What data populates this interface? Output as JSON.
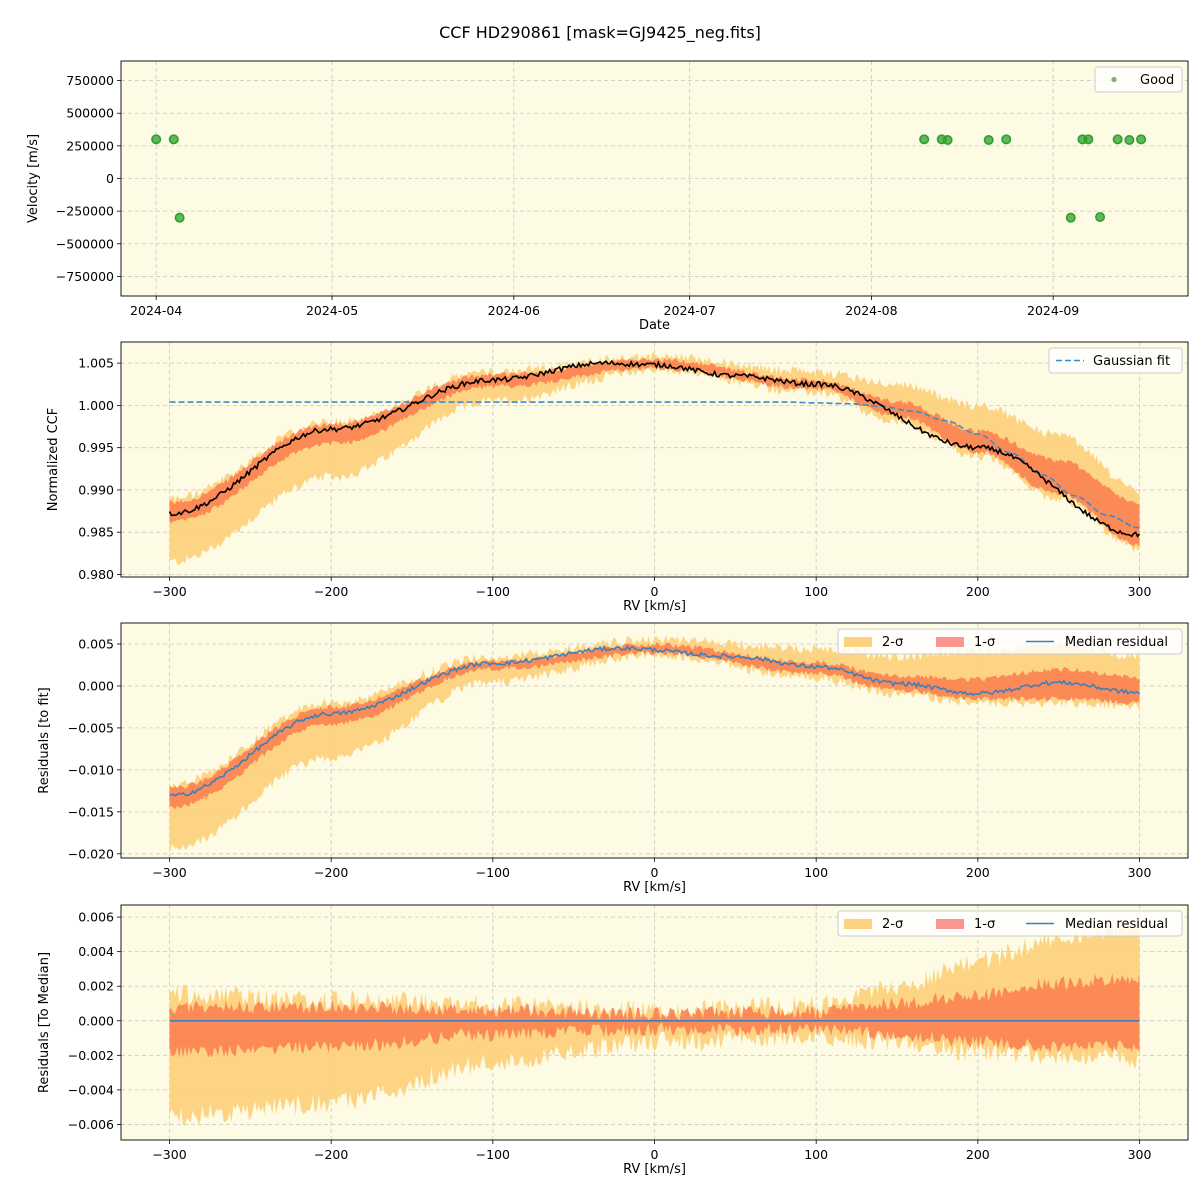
{
  "figure": {
    "title": "CCF HD290861 [mask=GJ9425_neg.fits]",
    "colors": {
      "plot_bg": "#fdfbe3",
      "sigma2": "#fdd27e",
      "sigma1": "#fc7d4d",
      "sigma1_legend": "#fb9590",
      "median": "#3f7fb8",
      "gaussian": "#3f8bc6",
      "ccf": "#000000",
      "good": "#2ca02c",
      "grid": "#c8c8c8"
    }
  },
  "chart_data": [
    {
      "type": "scatter",
      "xlabel": "Date",
      "ylabel": "Velocity [m/s]",
      "x_type": "date",
      "xlim": [
        "2024-03-26",
        "2024-09-24"
      ],
      "ylim": [
        -900000,
        900000
      ],
      "xticks": [
        "2024-04",
        "2024-05",
        "2024-06",
        "2024-07",
        "2024-08",
        "2024-09"
      ],
      "xtick_dates": [
        "2024-04-01",
        "2024-05-01",
        "2024-06-01",
        "2024-07-01",
        "2024-08-01",
        "2024-09-01"
      ],
      "yticks": [
        750000,
        500000,
        250000,
        0,
        -250000,
        -500000,
        -750000
      ],
      "ytick_labels": [
        "750000",
        "500000",
        "250000",
        "0",
        "−250000",
        "−500000",
        "−750000"
      ],
      "grid": true,
      "legend_position": "top-right",
      "series": [
        {
          "name": "Good",
          "points": [
            {
              "x": "2024-04-01",
              "y": 300000
            },
            {
              "x": "2024-04-04",
              "y": 300000
            },
            {
              "x": "2024-04-05",
              "y": -300000
            },
            {
              "x": "2024-08-10",
              "y": 300000
            },
            {
              "x": "2024-08-13",
              "y": 300000
            },
            {
              "x": "2024-08-14",
              "y": 295000
            },
            {
              "x": "2024-08-21",
              "y": 295000
            },
            {
              "x": "2024-08-24",
              "y": 300000
            },
            {
              "x": "2024-09-04",
              "y": -300000
            },
            {
              "x": "2024-09-06",
              "y": 300000
            },
            {
              "x": "2024-09-07",
              "y": 300000
            },
            {
              "x": "2024-09-09",
              "y": -295000
            },
            {
              "x": "2024-09-12",
              "y": 300000
            },
            {
              "x": "2024-09-14",
              "y": 295000
            },
            {
              "x": "2024-09-16",
              "y": 300000
            }
          ]
        }
      ]
    },
    {
      "type": "line",
      "xlabel": "RV [km/s]",
      "ylabel": "Normalized CCF",
      "xlim": [
        -330,
        330
      ],
      "ylim": [
        0.9797,
        1.0075
      ],
      "xticks": [
        -300,
        -200,
        -100,
        0,
        100,
        200,
        300
      ],
      "xtick_labels": [
        "−300",
        "−200",
        "−100",
        "0",
        "100",
        "200",
        "300"
      ],
      "yticks": [
        0.98,
        0.985,
        0.99,
        0.995,
        1.0,
        1.005
      ],
      "ytick_labels": [
        "0.980",
        "0.985",
        "0.990",
        "0.995",
        "1.000",
        "1.005"
      ],
      "grid": true,
      "legend_position": "top-right",
      "ccf_knots": {
        "x": [
          -300,
          -200,
          -100,
          -30,
          0,
          50,
          100,
          200,
          300
        ],
        "y": [
          0.9872,
          0.9972,
          1.003,
          1.005,
          1.0048,
          1.0035,
          1.0025,
          0.995,
          0.9847
        ]
      },
      "sigma1_knots": {
        "x": [
          -300,
          -200,
          -100,
          0,
          100,
          150,
          200,
          250,
          300
        ],
        "lo": [
          0.9862,
          0.9955,
          1.0022,
          1.0044,
          1.002,
          0.9988,
          0.9945,
          0.9895,
          0.9835
        ],
        "hi": [
          0.9885,
          0.9978,
          1.0037,
          1.0054,
          1.003,
          1.0005,
          0.997,
          0.9935,
          0.9885
        ]
      },
      "sigma2_knots": {
        "x": [
          -300,
          -200,
          -100,
          0,
          100,
          150,
          200,
          250,
          300
        ],
        "lo": [
          0.9815,
          0.9915,
          1.0005,
          1.0042,
          1.0015,
          0.998,
          0.994,
          0.989,
          0.983
        ],
        "hi": [
          0.989,
          0.998,
          1.004,
          1.0058,
          1.004,
          1.0025,
          1.0,
          0.9965,
          0.99
        ]
      },
      "series": [
        {
          "name": "Gaussian fit",
          "x": [
            -300,
            -200,
            -100,
            0,
            80,
            100,
            120,
            140,
            160,
            180,
            200,
            220,
            240,
            260,
            280,
            300
          ],
          "y": [
            1.0004,
            1.0004,
            1.0004,
            1.0004,
            1.0004,
            1.0003,
            1.0002,
            0.9999,
            0.9993,
            0.9982,
            0.9966,
            0.9944,
            0.9918,
            0.9893,
            0.987,
            0.9855
          ]
        }
      ]
    },
    {
      "type": "line",
      "xlabel": "RV [km/s]",
      "ylabel": "Residuals [to fit]",
      "xlim": [
        -330,
        330
      ],
      "ylim": [
        -0.0205,
        0.0075
      ],
      "xticks": [
        -300,
        -200,
        -100,
        0,
        100,
        200,
        300
      ],
      "xtick_labels": [
        "−300",
        "−200",
        "−100",
        "0",
        "100",
        "200",
        "300"
      ],
      "yticks": [
        0.005,
        0.0,
        -0.005,
        -0.01,
        -0.015,
        -0.02
      ],
      "ytick_labels": [
        "0.005",
        "0.000",
        "−0.005",
        "−0.010",
        "−0.015",
        "−0.020"
      ],
      "grid": true,
      "legend_position": "top-right",
      "legend_labels": [
        "2-σ",
        "1-σ",
        "Median residual"
      ],
      "median_knots": {
        "x": [
          -300,
          -200,
          -100,
          -20,
          50,
          100,
          150,
          200,
          250,
          300
        ],
        "y": [
          -0.0131,
          -0.0033,
          0.0027,
          0.0045,
          0.0035,
          0.0023,
          0.0003,
          -0.0009,
          0.0004,
          -0.0008
        ]
      },
      "sigma1_knots": {
        "x": [
          -300,
          -200,
          -100,
          0,
          100,
          150,
          200,
          250,
          300
        ],
        "lo": [
          -0.0145,
          -0.0045,
          0.002,
          0.0039,
          0.0015,
          -0.0005,
          -0.0015,
          -0.0015,
          -0.002
        ],
        "hi": [
          -0.0122,
          -0.0025,
          0.003,
          0.0049,
          0.0028,
          0.0012,
          0.0008,
          0.002,
          0.001
        ]
      },
      "sigma2_knots": {
        "x": [
          -300,
          -200,
          -100,
          0,
          100,
          150,
          200,
          250,
          300
        ],
        "lo": [
          -0.0195,
          -0.0085,
          0.0005,
          0.0037,
          0.001,
          -0.001,
          -0.002,
          -0.002,
          -0.0025
        ],
        "hi": [
          -0.0118,
          -0.002,
          0.0035,
          0.0055,
          0.0045,
          0.0035,
          0.0042,
          0.005,
          0.0035
        ]
      }
    },
    {
      "type": "line",
      "xlabel": "RV [km/s]",
      "ylabel": "Residuals [To Median]",
      "xlim": [
        -330,
        330
      ],
      "ylim": [
        -0.0069,
        0.0067
      ],
      "xticks": [
        -300,
        -200,
        -100,
        0,
        100,
        200,
        300
      ],
      "xtick_labels": [
        "−300",
        "−200",
        "−100",
        "0",
        "100",
        "200",
        "300"
      ],
      "yticks": [
        0.006,
        0.004,
        0.002,
        0.0,
        -0.002,
        -0.004,
        -0.006
      ],
      "ytick_labels": [
        "0.006",
        "0.004",
        "0.002",
        "0.000",
        "−0.002",
        "−0.004",
        "−0.006"
      ],
      "grid": true,
      "legend_position": "top-right",
      "legend_labels": [
        "2-σ",
        "1-σ",
        "Median residual"
      ],
      "median_value": 0.0,
      "sigma1_knots": {
        "x": [
          -300,
          -200,
          -100,
          0,
          100,
          150,
          200,
          250,
          300
        ],
        "lo": [
          -0.0018,
          -0.0015,
          -0.0008,
          -0.0005,
          -0.0005,
          -0.0008,
          -0.0012,
          -0.0015,
          -0.0015
        ],
        "hi": [
          0.0008,
          0.0008,
          0.0006,
          0.0004,
          0.0005,
          0.001,
          0.0015,
          0.0022,
          0.0025
        ]
      },
      "sigma2_knots": {
        "x": [
          -300,
          -200,
          -100,
          0,
          100,
          150,
          200,
          250,
          300
        ],
        "lo": [
          -0.0055,
          -0.0048,
          -0.0025,
          -0.0012,
          -0.001,
          -0.0012,
          -0.0018,
          -0.002,
          -0.0022
        ],
        "hi": [
          0.0015,
          0.0012,
          0.0009,
          0.0006,
          0.0009,
          0.002,
          0.0035,
          0.0048,
          0.0055
        ]
      }
    }
  ]
}
